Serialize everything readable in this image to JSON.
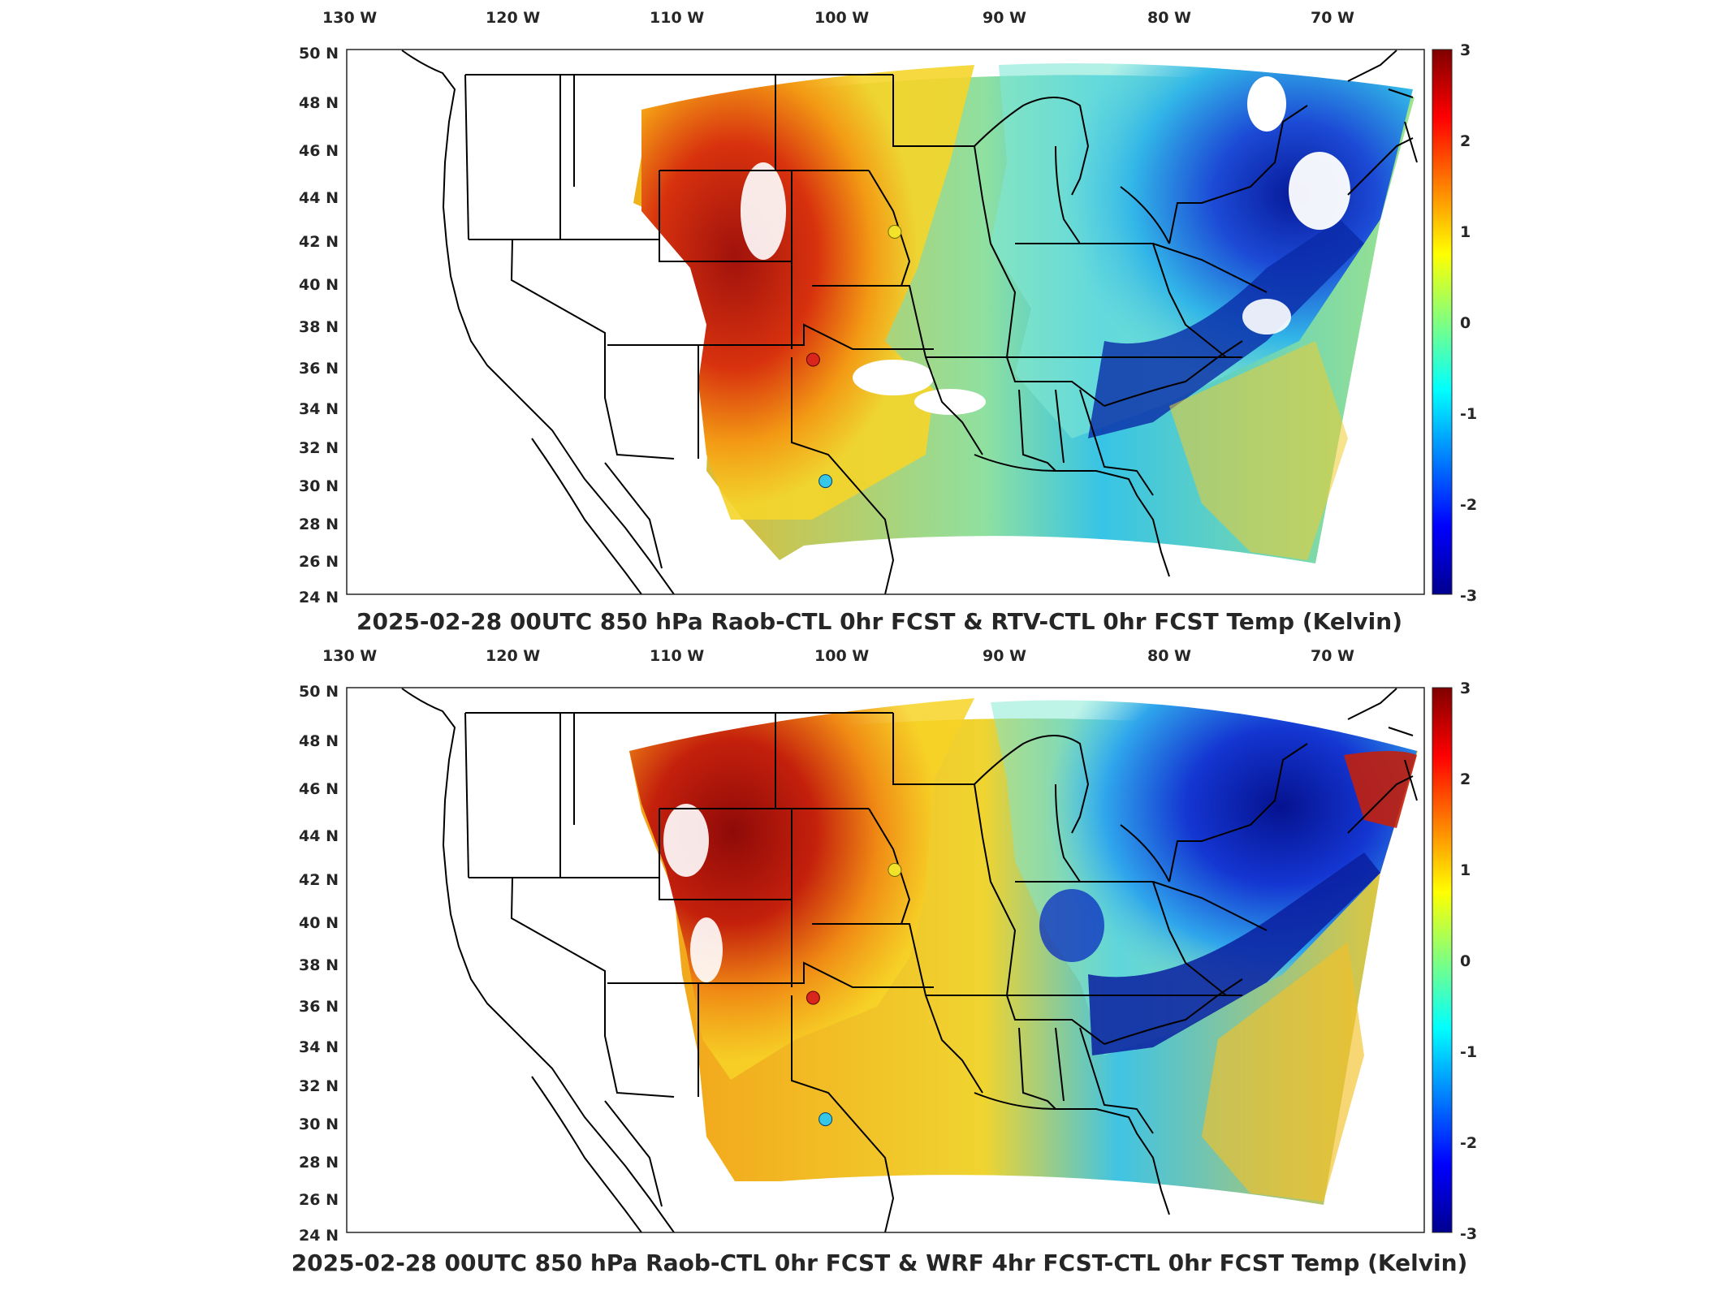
{
  "panels": [
    {
      "title": "2025-02-28 00UTC 850 hPa Raob-CTL 0hr FCST & RTV-CTL 0hr FCST Temp (Kelvin)",
      "lon_labels": [
        "130 W",
        "120 W",
        "110 W",
        "100 W",
        "90 W",
        "80 W",
        "70 W"
      ],
      "lat_labels": [
        "50 N",
        "48 N",
        "46 N",
        "44 N",
        "42 N",
        "40 N",
        "38 N",
        "36 N",
        "34 N",
        "32 N",
        "30 N",
        "28 N",
        "26 N",
        "24 N"
      ],
      "colorbar_ticks": [
        "3",
        "2",
        "1",
        "0",
        "-1",
        "-2",
        "-3"
      ],
      "stations": [
        {
          "lon": -96.4,
          "lat": 41.3,
          "value": 0.8,
          "color": "#f2e32a"
        },
        {
          "lon": -101.7,
          "lat": 35.2,
          "value": 2.7,
          "color": "#d9261c"
        },
        {
          "lon": -100.9,
          "lat": 29.4,
          "value": -0.8,
          "color": "#35c6e8"
        }
      ]
    },
    {
      "title": "2025-02-28 00UTC 850 hPa Raob-CTL 0hr FCST & WRF 4hr FCST-CTL 0hr FCST Temp (Kelvin)",
      "lon_labels": [
        "130 W",
        "120 W",
        "110 W",
        "100 W",
        "90 W",
        "80 W",
        "70 W"
      ],
      "lat_labels": [
        "50 N",
        "48 N",
        "46 N",
        "44 N",
        "42 N",
        "40 N",
        "38 N",
        "36 N",
        "34 N",
        "32 N",
        "30 N",
        "28 N",
        "26 N",
        "24 N"
      ],
      "colorbar_ticks": [
        "3",
        "2",
        "1",
        "0",
        "-1",
        "-2",
        "-3"
      ],
      "stations": [
        {
          "lon": -96.4,
          "lat": 41.3,
          "value": 0.8,
          "color": "#f2e32a"
        },
        {
          "lon": -101.7,
          "lat": 35.2,
          "value": 2.7,
          "color": "#d9261c"
        },
        {
          "lon": -100.9,
          "lat": 29.4,
          "value": -0.8,
          "color": "#35c6e8"
        }
      ]
    }
  ],
  "map": {
    "lon_range": [
      -132,
      -62
    ],
    "lat_range": [
      24,
      50
    ],
    "colormap": "jet",
    "clim": [
      -3,
      3
    ]
  },
  "colors": {
    "axis": "#262626",
    "coast": "#000000",
    "colorbar_top": "#800000",
    "colorbar_bottom": "#00008f"
  }
}
